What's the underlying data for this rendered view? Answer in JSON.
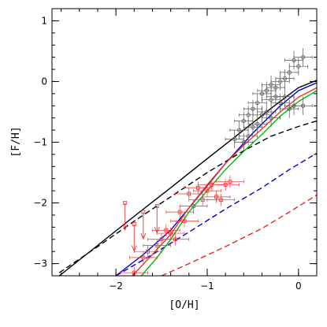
{
  "chart_data": {
    "type": "scatter",
    "title": "",
    "xlabel": "[O/H]",
    "ylabel": "[F/H]",
    "xlim": [
      -2.7,
      0.2
    ],
    "ylim": [
      -3.2,
      1.2
    ],
    "x_ticks": [
      -2,
      -1,
      0
    ],
    "x_tick_labels": [
      "−2",
      "−1",
      "0"
    ],
    "y_ticks": [
      -3,
      -2,
      -1,
      0,
      1
    ],
    "y_tick_labels": [
      "−3",
      "−2",
      "−1",
      "0",
      "1"
    ],
    "grid": false,
    "legend": "none",
    "series": [
      {
        "kind": "line",
        "color": "#000000",
        "dash": "solid",
        "points": [
          [
            -2.62,
            -3.2
          ],
          [
            -2.2,
            -2.7
          ],
          [
            -1.8,
            -2.22
          ],
          [
            -1.4,
            -1.75
          ],
          [
            -1.0,
            -1.27
          ],
          [
            -0.6,
            -0.8
          ],
          [
            -0.3,
            -0.44
          ],
          [
            0.0,
            -0.1
          ],
          [
            0.2,
            0.02
          ]
        ]
      },
      {
        "kind": "line",
        "color": "#000000",
        "dash": "dashed",
        "points": [
          [
            -2.62,
            -3.15
          ],
          [
            -2.2,
            -2.72
          ],
          [
            -1.8,
            -2.3
          ],
          [
            -1.4,
            -1.9
          ],
          [
            -1.0,
            -1.5
          ],
          [
            -0.6,
            -1.14
          ],
          [
            -0.3,
            -0.9
          ],
          [
            0.0,
            -0.74
          ],
          [
            0.2,
            -0.65
          ]
        ]
      },
      {
        "kind": "line",
        "color": "#0000cc",
        "dash": "solid",
        "points": [
          [
            -2.0,
            -3.2
          ],
          [
            -1.7,
            -2.85
          ],
          [
            -1.4,
            -2.45
          ],
          [
            -1.1,
            -1.9
          ],
          [
            -0.8,
            -1.35
          ],
          [
            -0.5,
            -0.85
          ],
          [
            -0.2,
            -0.4
          ],
          [
            0.0,
            -0.15
          ],
          [
            0.2,
            -0.02
          ]
        ]
      },
      {
        "kind": "line",
        "color": "#0000cc",
        "dash": "dashed",
        "points": [
          [
            -2.0,
            -3.2
          ],
          [
            -1.6,
            -2.85
          ],
          [
            -1.2,
            -2.48
          ],
          [
            -0.8,
            -2.1
          ],
          [
            -0.4,
            -1.75
          ],
          [
            -0.1,
            -1.45
          ],
          [
            0.2,
            -1.18
          ]
        ]
      },
      {
        "kind": "line",
        "color": "#ee3333",
        "dash": "solid",
        "points": [
          [
            -1.82,
            -3.2
          ],
          [
            -1.6,
            -2.85
          ],
          [
            -1.4,
            -2.52
          ],
          [
            -1.2,
            -2.08
          ],
          [
            -1.0,
            -1.7
          ],
          [
            -0.8,
            -1.35
          ],
          [
            -0.6,
            -1.05
          ],
          [
            -0.4,
            -0.78
          ],
          [
            -0.2,
            -0.5
          ],
          [
            0.0,
            -0.26
          ],
          [
            0.2,
            -0.1
          ]
        ]
      },
      {
        "kind": "line",
        "color": "#00bb00",
        "dash": "solid",
        "points": [
          [
            -1.72,
            -3.2
          ],
          [
            -1.55,
            -2.9
          ],
          [
            -1.4,
            -2.6
          ],
          [
            -1.2,
            -2.15
          ],
          [
            -1.0,
            -1.8
          ],
          [
            -0.8,
            -1.45
          ],
          [
            -0.6,
            -1.15
          ],
          [
            -0.4,
            -0.87
          ],
          [
            -0.2,
            -0.57
          ],
          [
            0.0,
            -0.33
          ],
          [
            0.2,
            -0.15
          ]
        ]
      },
      {
        "kind": "line",
        "color": "#ee2222",
        "dash": "dashed",
        "points": [
          [
            -1.5,
            -3.2
          ],
          [
            -1.2,
            -3.0
          ],
          [
            -0.8,
            -2.72
          ],
          [
            -0.4,
            -2.42
          ],
          [
            -0.1,
            -2.15
          ],
          [
            0.2,
            -1.87
          ]
        ]
      },
      {
        "kind": "points",
        "color": "#555555",
        "marker": "circle",
        "points": [
          [
            -0.05,
            0.35
          ],
          [
            0.05,
            0.4
          ],
          [
            0.0,
            0.25
          ],
          [
            -0.1,
            0.15
          ],
          [
            -0.15,
            0.05
          ],
          [
            -0.2,
            0.0
          ],
          [
            -0.25,
            -0.1
          ],
          [
            -0.3,
            -0.05
          ],
          [
            -0.35,
            -0.15
          ],
          [
            -0.4,
            -0.2
          ],
          [
            -0.25,
            -0.25
          ],
          [
            -0.3,
            -0.3
          ],
          [
            -0.45,
            -0.35
          ],
          [
            -0.5,
            -0.45
          ],
          [
            -0.35,
            -0.5
          ],
          [
            -0.4,
            -0.55
          ],
          [
            -0.55,
            -0.55
          ],
          [
            -0.6,
            -0.65
          ],
          [
            -0.45,
            -0.7
          ],
          [
            -0.5,
            -0.75
          ],
          [
            -0.65,
            -0.8
          ],
          [
            -0.55,
            -0.9
          ],
          [
            -0.7,
            -0.95
          ],
          [
            -0.2,
            -0.35
          ],
          [
            -0.15,
            -0.25
          ],
          [
            -0.1,
            -0.45
          ],
          [
            -0.05,
            -0.4
          ],
          [
            0.05,
            -0.4
          ],
          [
            -0.3,
            -0.6
          ],
          [
            -0.6,
            -1.0
          ]
        ],
        "xerr": 0.1,
        "yerr": 0.15
      },
      {
        "kind": "points",
        "color": "#ee3333",
        "marker": "square",
        "points": [
          [
            -1.2,
            -1.85
          ],
          [
            -1.1,
            -1.75
          ],
          [
            -1.0,
            -1.8
          ],
          [
            -0.9,
            -1.9
          ],
          [
            -0.8,
            -1.7
          ],
          [
            -0.85,
            -1.95
          ],
          [
            -1.05,
            -1.95
          ],
          [
            -0.95,
            -1.7
          ],
          [
            -0.75,
            -1.65
          ],
          [
            -1.15,
            -2.05
          ],
          [
            -1.3,
            -2.15
          ],
          [
            -1.25,
            -2.3
          ],
          [
            -1.4,
            -2.5
          ],
          [
            -1.5,
            -2.6
          ],
          [
            -1.45,
            -2.45
          ],
          [
            -1.55,
            -2.7
          ],
          [
            -1.65,
            -2.8
          ],
          [
            -1.7,
            -2.9
          ],
          [
            -1.8,
            -3.15
          ],
          [
            -1.35,
            -2.6
          ]
        ],
        "xerr": 0.15,
        "yerr": 0.1
      },
      {
        "kind": "upper_limits",
        "color": "#ee3333",
        "points": [
          [
            -1.9,
            -2.0
          ],
          [
            -1.7,
            -2.15
          ],
          [
            -1.55,
            -2.05
          ],
          [
            -1.8,
            -2.35
          ]
        ]
      }
    ]
  }
}
